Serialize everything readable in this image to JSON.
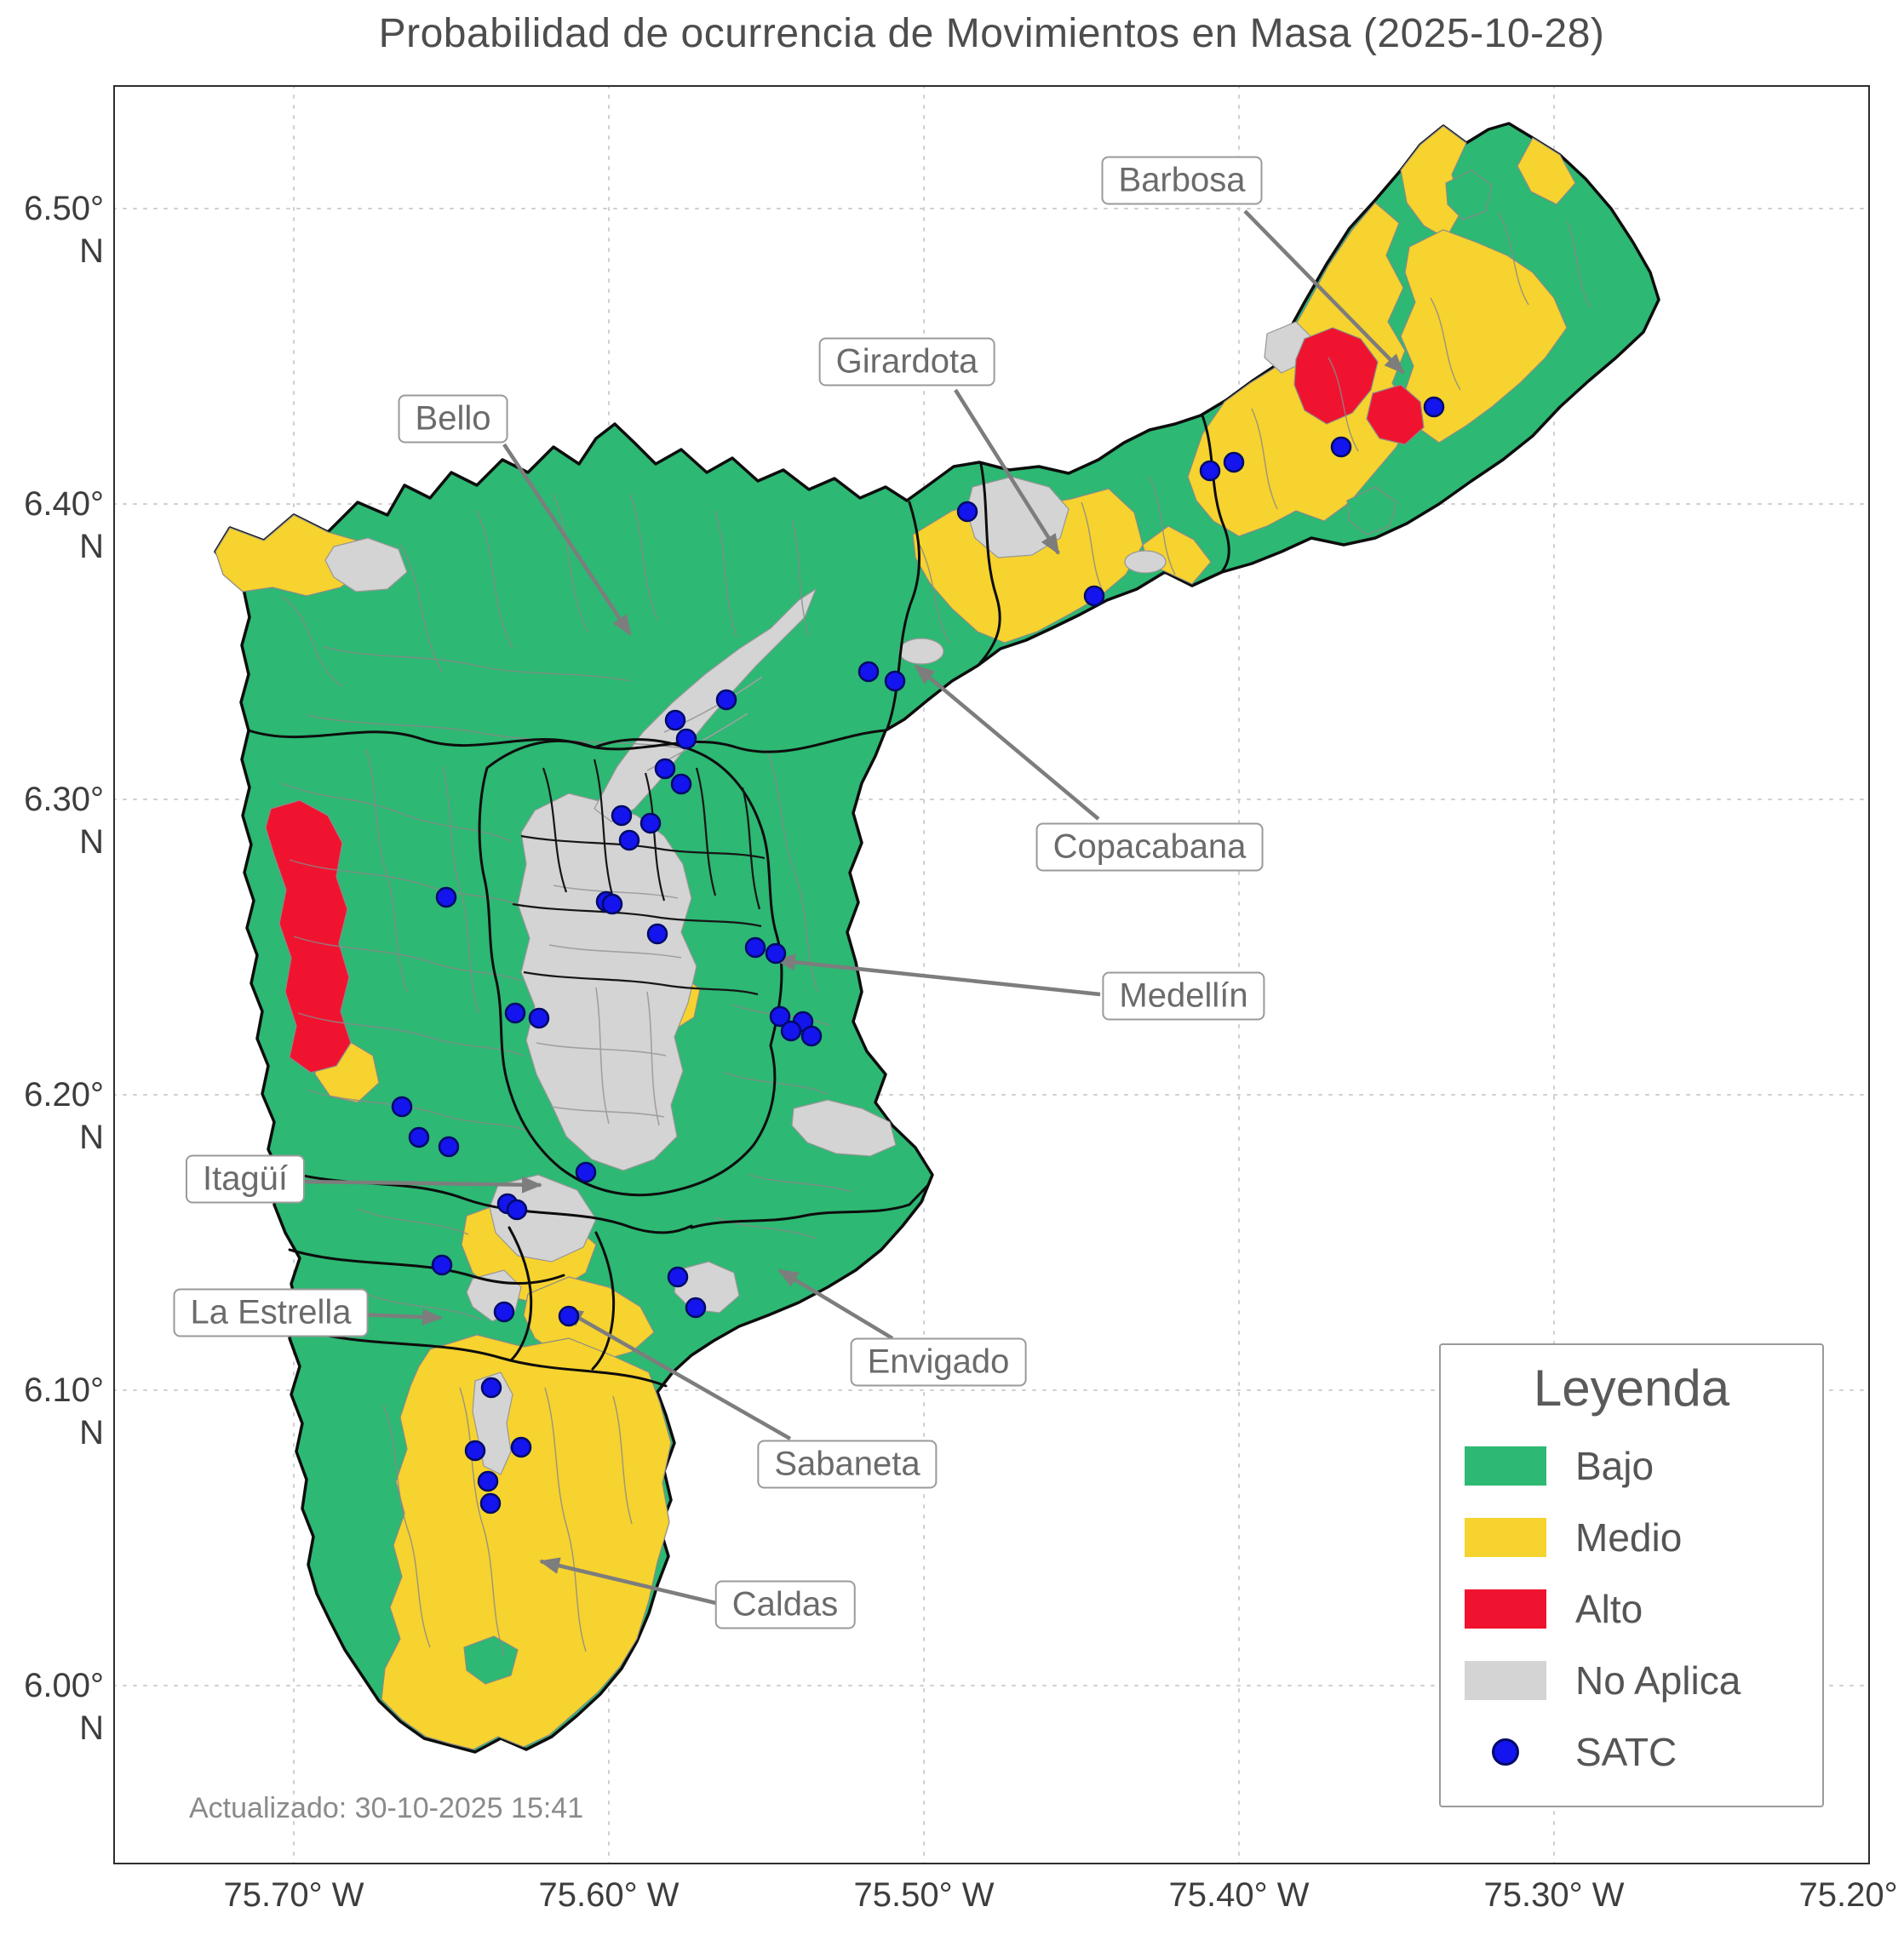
{
  "title": "Probabilidad de ocurrencia de Movimientos en Masa (2025-10-28)",
  "updated_text": "Actualizado: 30-10-2025 15:41",
  "axes": {
    "y_ticks": [
      "6.50° N",
      "6.40° N",
      "6.30° N",
      "6.20° N",
      "6.10° N",
      "6.00° N"
    ],
    "x_ticks": [
      "75.70° W",
      "75.60° W",
      "75.50° W",
      "75.40° W",
      "75.30° W",
      "75.20° W"
    ]
  },
  "legend": {
    "title": "Leyenda",
    "items": [
      {
        "label": "Bajo",
        "marker": "swatch",
        "color": "#2db873"
      },
      {
        "label": "Medio",
        "marker": "swatch",
        "color": "#f6d32e"
      },
      {
        "label": "Alto",
        "marker": "swatch",
        "color": "#f0132f"
      },
      {
        "label": "No Aplica",
        "marker": "swatch",
        "color": "#d4d4d4"
      },
      {
        "label": "SATC",
        "marker": "dot",
        "color": "#1414ee"
      }
    ]
  },
  "annotations": [
    {
      "label": "Barbosa"
    },
    {
      "label": "Girardota"
    },
    {
      "label": "Bello"
    },
    {
      "label": "Copacabana"
    },
    {
      "label": "Medellín"
    },
    {
      "label": "Itagüí"
    },
    {
      "label": "La Estrella"
    },
    {
      "label": "Envigado"
    },
    {
      "label": "Sabaneta"
    },
    {
      "label": "Caldas"
    }
  ],
  "satc_points": [
    [
      1684,
      478
    ],
    [
      1575,
      525
    ],
    [
      1449,
      543
    ],
    [
      1421,
      553
    ],
    [
      1136,
      601
    ],
    [
      1285,
      700
    ],
    [
      1020,
      789
    ],
    [
      1051,
      800
    ],
    [
      853,
      822
    ],
    [
      793,
      846
    ],
    [
      806,
      868
    ],
    [
      781,
      903
    ],
    [
      800,
      921
    ],
    [
      730,
      958
    ],
    [
      764,
      967
    ],
    [
      739,
      987
    ],
    [
      524,
      1054
    ],
    [
      712,
      1059
    ],
    [
      719,
      1062
    ],
    [
      772,
      1097
    ],
    [
      887,
      1113
    ],
    [
      911,
      1120
    ],
    [
      916,
      1194
    ],
    [
      943,
      1200
    ],
    [
      929,
      1211
    ],
    [
      953,
      1217
    ],
    [
      605,
      1190
    ],
    [
      633,
      1196
    ],
    [
      472,
      1300
    ],
    [
      492,
      1336
    ],
    [
      527,
      1347
    ],
    [
      688,
      1377
    ],
    [
      596,
      1414
    ],
    [
      607,
      1421
    ],
    [
      519,
      1486
    ],
    [
      796,
      1500
    ],
    [
      817,
      1536
    ],
    [
      592,
      1541
    ],
    [
      668,
      1546
    ],
    [
      577,
      1630
    ],
    [
      558,
      1704
    ],
    [
      612,
      1700
    ],
    [
      573,
      1740
    ],
    [
      576,
      1766
    ]
  ],
  "colors": {
    "bajo": "#2db873",
    "medio": "#f6d32e",
    "alto": "#f0132f",
    "no_aplica": "#d4d4d4",
    "satc_dot": "#1414ee",
    "municipality_border": "#0d0d0d",
    "annotation_gray": "#7d7d7d"
  }
}
